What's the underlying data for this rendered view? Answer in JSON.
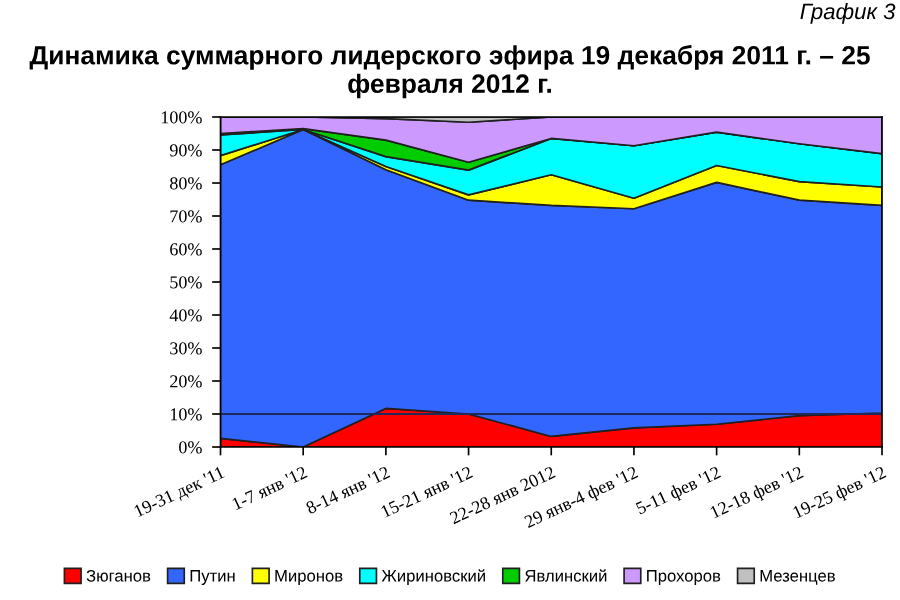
{
  "chart_data": {
    "type": "area",
    "stacked": true,
    "title": "Динамика суммарного лидерского эфира 19 декабря 2011 г. – 25 февраля 2012 г.",
    "annotations": [
      "График 3"
    ],
    "categories": [
      "19-31 дек '11",
      "1-7 янв '12",
      "8-14 янв '12",
      "15-21 янв '12",
      "22-28 янв 2012",
      "29 янв-4 фев '12",
      "5-11 фев '12",
      "12-18 фев '12",
      "19-25 фев '12"
    ],
    "series": [
      {
        "name": "Зюганов",
        "color": "#ff0000",
        "values": [
          2.6,
          0,
          11.7,
          10,
          3.2,
          5.8,
          6.9,
          9.5,
          10.3
        ]
      },
      {
        "name": "Путин",
        "color": "#3366ff",
        "values": [
          82.9,
          96.2,
          72.3,
          64.8,
          70,
          66.4,
          73.3,
          65.3,
          62.9
        ]
      },
      {
        "name": "Миронов",
        "color": "#ffff00",
        "values": [
          2.8,
          0,
          1,
          1.6,
          9.3,
          3.2,
          5.1,
          5.6,
          5.6
        ]
      },
      {
        "name": "Жириновский",
        "color": "#00ffff",
        "values": [
          6.3,
          0,
          3,
          7.5,
          11,
          15.9,
          10.1,
          11.5,
          10.1
        ]
      },
      {
        "name": "Явлинский",
        "color": "#00cc00",
        "values": [
          0.4,
          0.3,
          5,
          2.4,
          0,
          0,
          0,
          0,
          0
        ]
      },
      {
        "name": "Прохоров",
        "color": "#cc99ff",
        "values": [
          5,
          3.5,
          6.5,
          12.1,
          6.5,
          8.7,
          4.6,
          8.1,
          11.1
        ]
      },
      {
        "name": "Мезенцев",
        "color": "#c0c0c0",
        "values": [
          0,
          0,
          0.5,
          1.6,
          0,
          0,
          0,
          0,
          0
        ]
      }
    ],
    "ylim": [
      0,
      100
    ],
    "yticks": [
      {
        "value": 0,
        "label": "0%"
      },
      {
        "value": 10,
        "label": "10%"
      },
      {
        "value": 20,
        "label": "20%"
      },
      {
        "value": 30,
        "label": "30%"
      },
      {
        "value": 40,
        "label": "40%"
      },
      {
        "value": 50,
        "label": "50%"
      },
      {
        "value": 60,
        "label": "60%"
      },
      {
        "value": 70,
        "label": "70%"
      },
      {
        "value": 80,
        "label": "80%"
      },
      {
        "value": 90,
        "label": "90%"
      },
      {
        "value": 100,
        "label": "100%"
      }
    ],
    "ref_lines": [
      {
        "axis": "y",
        "value": 10,
        "color": "#1f2a5a"
      }
    ],
    "grid": false,
    "legend": "bottom"
  }
}
